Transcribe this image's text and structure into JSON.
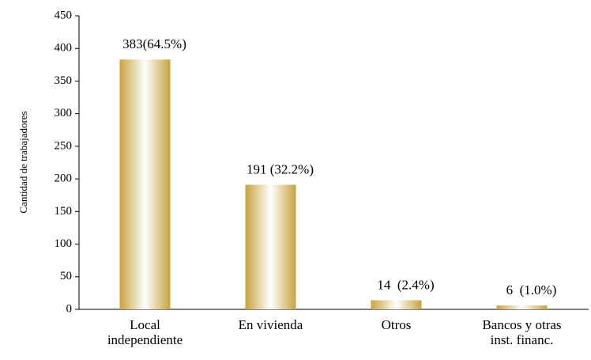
{
  "chart_data": {
    "type": "bar",
    "y_label": "Cantidad de trabajadores",
    "categories": [
      "Local\nindependiente",
      "En vivienda",
      "Otros",
      "Bancos y otras\ninst. financ."
    ],
    "values": [
      383,
      191,
      14,
      6
    ],
    "value_labels": [
      "383(64.5%)",
      "191 (32.2%)",
      "14  (2.4%)",
      "6  (1.0%)"
    ],
    "color": "#c9a23f",
    "ylim": [
      0,
      450
    ],
    "yticks": [
      0,
      50,
      100,
      150,
      200,
      250,
      300,
      350,
      400,
      450
    ],
    "grid": false
  }
}
